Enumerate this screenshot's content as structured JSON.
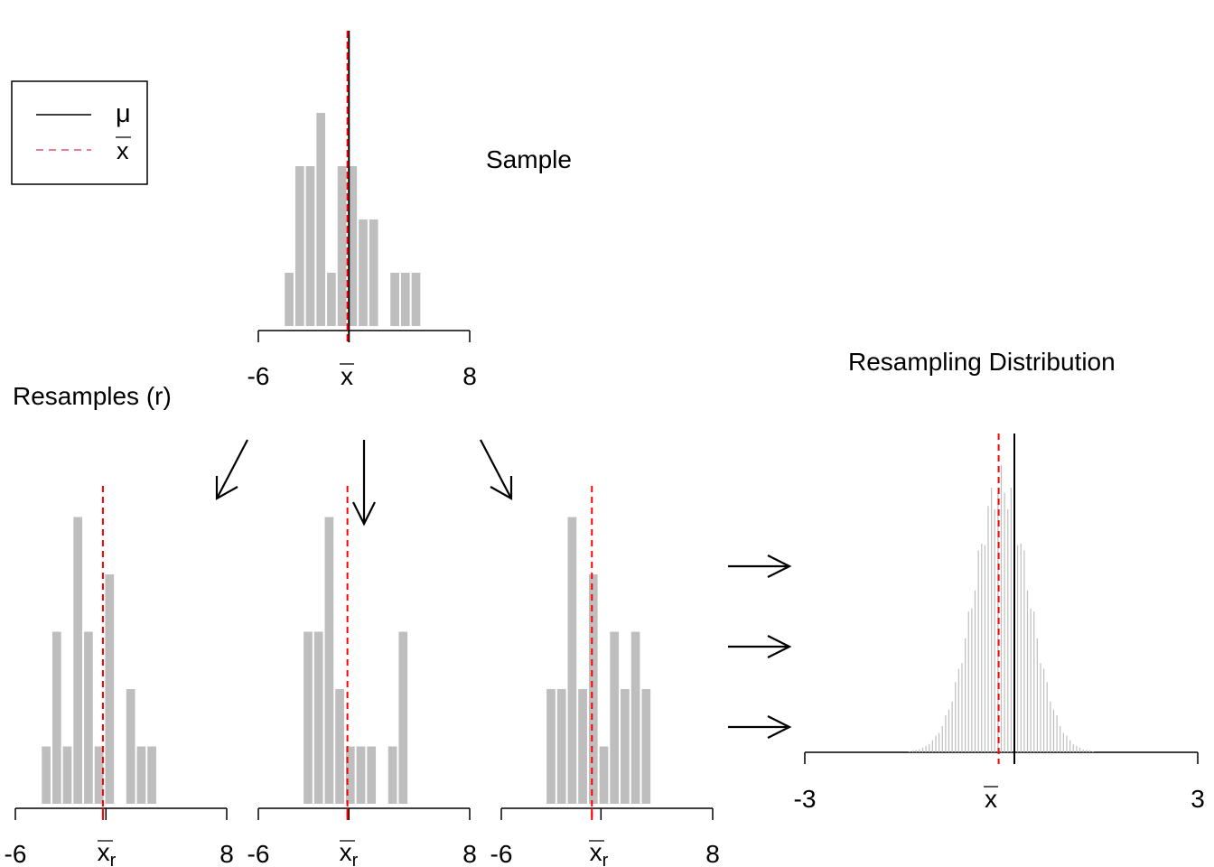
{
  "colors": {
    "bar": "#bebebe",
    "mu_line": "#000000",
    "xbar_line": "#ff0000",
    "legend_dash": "#df536b",
    "axis": "#000000",
    "text": "#000000"
  },
  "legend": {
    "mu_label": "μ",
    "xbar_label": "x"
  },
  "labels": {
    "sample_title": "Sample",
    "resamples_title": "Resamples (r)",
    "resampling_title": "Resampling Distribution",
    "xbar_tick": "x",
    "xbar_r_tick": "x",
    "xbar_r_sub": "r",
    "resdist_xbar_tick": "x"
  },
  "icons": {
    "down_arrows": "arrow-icon",
    "right_arrows": "arrow-right-icon"
  },
  "chart_data": [
    {
      "id": "sample",
      "type": "bar",
      "xlim": [
        -6,
        8
      ],
      "ticks": [
        "-6",
        "8"
      ],
      "xbar": -0.1,
      "mu": 0.0,
      "bins_from": -4.25,
      "bin_width": 0.7,
      "counts": [
        1,
        3,
        3,
        4,
        1,
        3,
        3,
        2,
        2,
        0,
        1,
        1,
        1
      ]
    },
    {
      "id": "resample-1",
      "type": "bar",
      "xlim": [
        -6,
        8
      ],
      "ticks": [
        "-6",
        "8"
      ],
      "xbar": -0.2,
      "tick_at": 0.0,
      "bins_from": -4.25,
      "bin_width": 0.7,
      "counts": [
        1,
        3,
        1,
        5,
        3,
        1,
        4,
        0,
        2,
        1,
        1
      ]
    },
    {
      "id": "resample-2",
      "type": "bar",
      "xlim": [
        -6,
        8
      ],
      "ticks": [
        "-6",
        "8"
      ],
      "xbar": -0.1,
      "tick_at": 0.0,
      "bins_from": -3.0,
      "bin_width": 0.7,
      "counts": [
        3,
        3,
        5,
        2,
        1,
        1,
        1,
        0,
        1,
        3
      ]
    },
    {
      "id": "resample-3",
      "type": "bar",
      "xlim": [
        -6,
        8
      ],
      "ticks": [
        "-6",
        "8"
      ],
      "xbar": 0.0,
      "tick_at": 0.6,
      "bins_from": -3.0,
      "bin_width": 0.7,
      "counts": [
        2,
        2,
        5,
        2,
        4,
        1,
        3,
        2,
        3,
        2
      ]
    },
    {
      "id": "resampling-distribution",
      "type": "bar",
      "xlim": [
        -3,
        3
      ],
      "ticks": [
        "-3",
        "3"
      ],
      "xbar": -0.04,
      "mu": 0.2,
      "bins_from": -1.4,
      "bin_width": 0.05
    }
  ]
}
